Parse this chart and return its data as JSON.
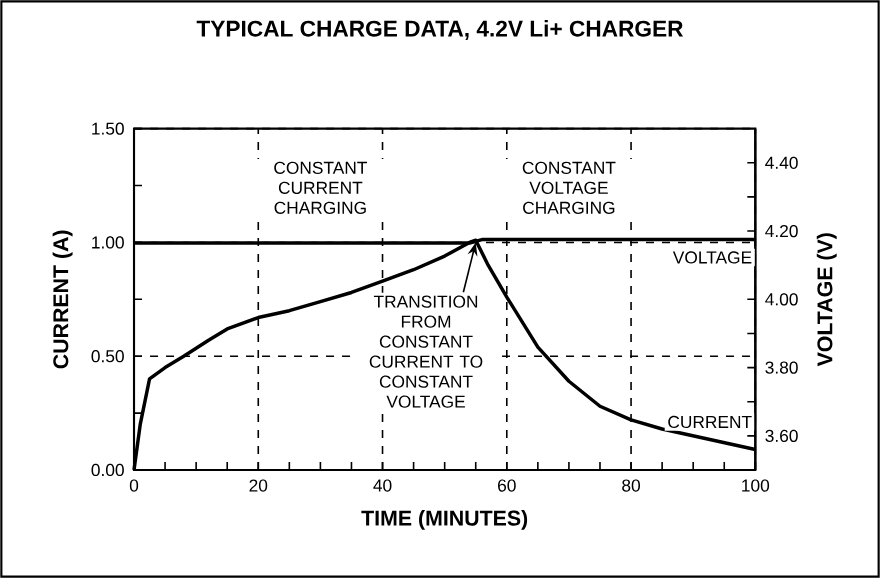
{
  "chart_data": {
    "type": "line",
    "title": "TYPICAL CHARGE DATA, 4.2V Li+ CHARGER",
    "xlabel": "TIME (MINUTES)",
    "ylabel": "CURRENT (A)",
    "y2label": "VOLTAGE (V)",
    "xlim": [
      0,
      100
    ],
    "ylim": [
      0,
      1.5
    ],
    "y2lim": [
      3.5,
      4.5
    ],
    "xticks": [
      0,
      20,
      40,
      60,
      80,
      100,
      {
        "value": 5,
        "label": null
      },
      {
        "value": 10,
        "label": null
      },
      {
        "value": 15,
        "label": null
      },
      {
        "value": 25,
        "label": null
      },
      {
        "value": 30,
        "label": null
      },
      {
        "value": 35,
        "label": null
      },
      {
        "value": 45,
        "label": null
      },
      {
        "value": 50,
        "label": null
      },
      {
        "value": 55,
        "label": null
      },
      {
        "value": 65,
        "label": null
      },
      {
        "value": 70,
        "label": null
      },
      {
        "value": 75,
        "label": null
      },
      {
        "value": 85,
        "label": null
      },
      {
        "value": 90,
        "label": null
      },
      {
        "value": 95,
        "label": null
      }
    ],
    "yticks": [
      {
        "value": 0,
        "label": "0.00"
      },
      {
        "value": 0.5,
        "label": "0.50"
      },
      {
        "value": 1.0,
        "label": "1.00"
      },
      {
        "value": 1.5,
        "label": "1.50"
      },
      {
        "value": 0.25,
        "label": null
      },
      {
        "value": 0.75,
        "label": null
      },
      {
        "value": 1.25,
        "label": null
      }
    ],
    "y2ticks": [
      {
        "value": 3.6,
        "label": "3.60"
      },
      {
        "value": 3.8,
        "label": "3.80"
      },
      {
        "value": 4.0,
        "label": "4.00"
      },
      {
        "value": 4.2,
        "label": "4.20"
      },
      {
        "value": 4.4,
        "label": "4.40"
      },
      {
        "value": 3.7,
        "label": null
      },
      {
        "value": 3.9,
        "label": null
      },
      {
        "value": 4.1,
        "label": null
      },
      {
        "value": 4.3,
        "label": null
      }
    ],
    "grid": true,
    "marker": "none",
    "line_style": "solid",
    "series": [
      {
        "name": "CURRENT",
        "color": "#000000",
        "x": [
          0,
          1,
          2.5,
          5,
          8,
          12,
          15,
          20,
          25,
          30,
          35,
          40,
          45,
          50,
          54,
          55,
          57,
          60,
          65,
          70,
          75,
          80,
          85,
          90,
          95,
          100
        ],
        "values": [
          0,
          0.2,
          0.4,
          0.45,
          0.5,
          0.57,
          0.62,
          0.67,
          0.7,
          0.74,
          0.78,
          0.83,
          0.88,
          0.94,
          1.0,
          1.01,
          0.9,
          0.76,
          0.54,
          0.39,
          0.28,
          0.22,
          0.18,
          0.15,
          0.12,
          0.09
        ]
      },
      {
        "name": "VOLTAGE",
        "color": "#000000",
        "axis": "y2",
        "x": [
          0,
          54,
          56,
          100
        ],
        "values": [
          4.165,
          4.165,
          4.175,
          4.175
        ]
      }
    ],
    "annotations": [
      "CONSTANT CURRENT CHARGING",
      "CONSTANT VOLTAGE CHARGING",
      {
        "text": "TRANSITION FROM CONSTANT CURRENT TO CONSTANT VOLTAGE",
        "x": 55,
        "y": 1.0
      }
    ]
  }
}
